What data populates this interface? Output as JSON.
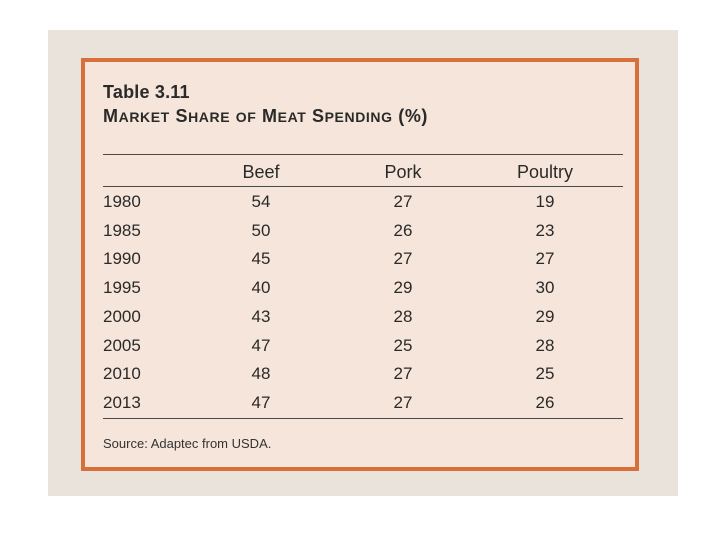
{
  "table": {
    "number": "Table 3.11",
    "title_words": [
      {
        "cap": "M",
        "rest": "ARKET"
      },
      {
        "cap": "S",
        "rest": "HARE"
      },
      {
        "cap": "",
        "rest": "OF"
      },
      {
        "cap": "M",
        "rest": "EAT"
      },
      {
        "cap": "S",
        "rest": "PENDING"
      },
      {
        "cap": "(%)",
        "rest": ""
      }
    ],
    "columns": [
      "Beef",
      "Pork",
      "Poultry"
    ],
    "rows": [
      {
        "year": "1980",
        "values": [
          "54",
          "27",
          "19"
        ]
      },
      {
        "year": "1985",
        "values": [
          "50",
          "26",
          "23"
        ]
      },
      {
        "year": "1990",
        "values": [
          "45",
          "27",
          "27"
        ]
      },
      {
        "year": "1995",
        "values": [
          "40",
          "29",
          "30"
        ]
      },
      {
        "year": "2000",
        "values": [
          "43",
          "28",
          "29"
        ]
      },
      {
        "year": "2005",
        "values": [
          "47",
          "25",
          "28"
        ]
      },
      {
        "year": "2010",
        "values": [
          "48",
          "27",
          "25"
        ]
      },
      {
        "year": "2013",
        "values": [
          "47",
          "27",
          "26"
        ]
      }
    ],
    "source": "Source: Adaptec from USDA."
  },
  "colors": {
    "border": "#d9703a",
    "card": "#f6e5da",
    "text": "#2a2a2a"
  }
}
